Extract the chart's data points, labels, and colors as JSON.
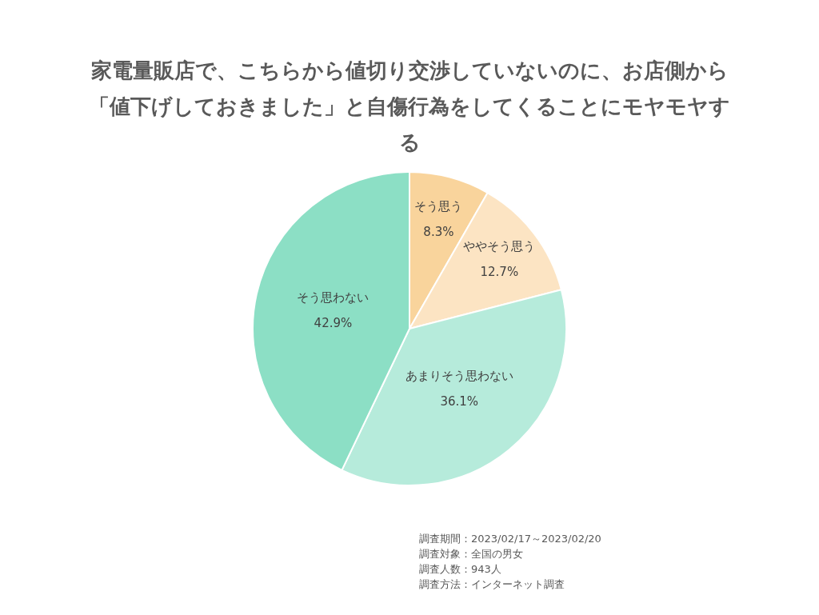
{
  "chart_data": {
    "type": "pie",
    "title": "家電量販店で、こちらから値切り交渉していないのに、お店側から「値下げしておきました」と自傷行為をしてくることにモヤモヤする",
    "categories": [
      "そう思う",
      "ややそう思う",
      "あまりそう思わない",
      "そう思わない"
    ],
    "values": [
      8.3,
      12.7,
      36.1,
      42.9
    ],
    "colors": [
      "#f9d49c",
      "#fce4c3",
      "#b6ebdb",
      "#8cdfc5"
    ],
    "value_labels": [
      "8.3%",
      "12.7%",
      "36.1%",
      "42.9%"
    ],
    "legend": false,
    "annotations": [
      "調査期間：2023/02/17～2023/02/20",
      "調査対象：全国の男女",
      "調査人数：943人",
      "調査方法：インターネット調査"
    ]
  }
}
